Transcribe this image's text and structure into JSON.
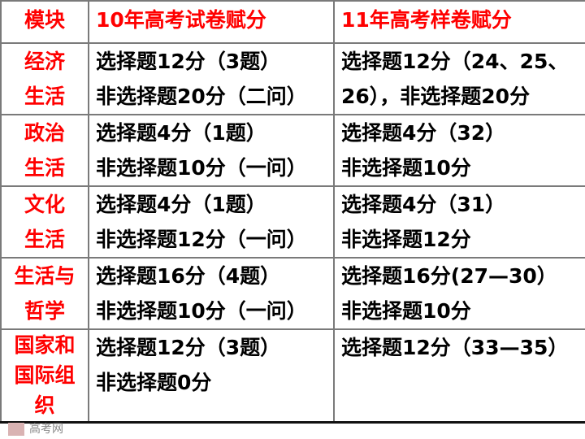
{
  "watermark": "高考网",
  "header": [
    "模块",
    "10年高考试卷赋分",
    "11年高考样卷赋分"
  ],
  "rows": [
    {
      "module": "经济生活",
      "y10": [
        "选择题12分（3题）",
        "非选择题20分（二问）"
      ],
      "y11": [
        "选择题12分（24、25、",
        "26），非选择题20分"
      ]
    },
    {
      "module": "政治生活",
      "y10": [
        "选择题4分（1题）",
        "非选择题10分（一问）"
      ],
      "y11": [
        "选择题4分（32）",
        "非选择题10分"
      ]
    },
    {
      "module": "文化生活",
      "y10": [
        "选择题4分（1题）",
        "非选择题12分（一问）"
      ],
      "y11": [
        "选择题4分（31）",
        "非选择题12分"
      ]
    },
    {
      "module": "生活与哲学",
      "y10": [
        "选择题16分（4题）",
        "非选择题10分（一问）"
      ],
      "y11": [
        "选择题16分(27—30）",
        "非选择题10分"
      ]
    },
    {
      "module": "国家和国际组织",
      "y10": [
        "选择题12分（3题）",
        "非选择题0分"
      ],
      "y11": [
        "选择题12分（33—35）"
      ]
    }
  ],
  "colors": {
    "module_text": "#ff0000",
    "body_text": "#000000",
    "grid": "#7a7a7a"
  }
}
